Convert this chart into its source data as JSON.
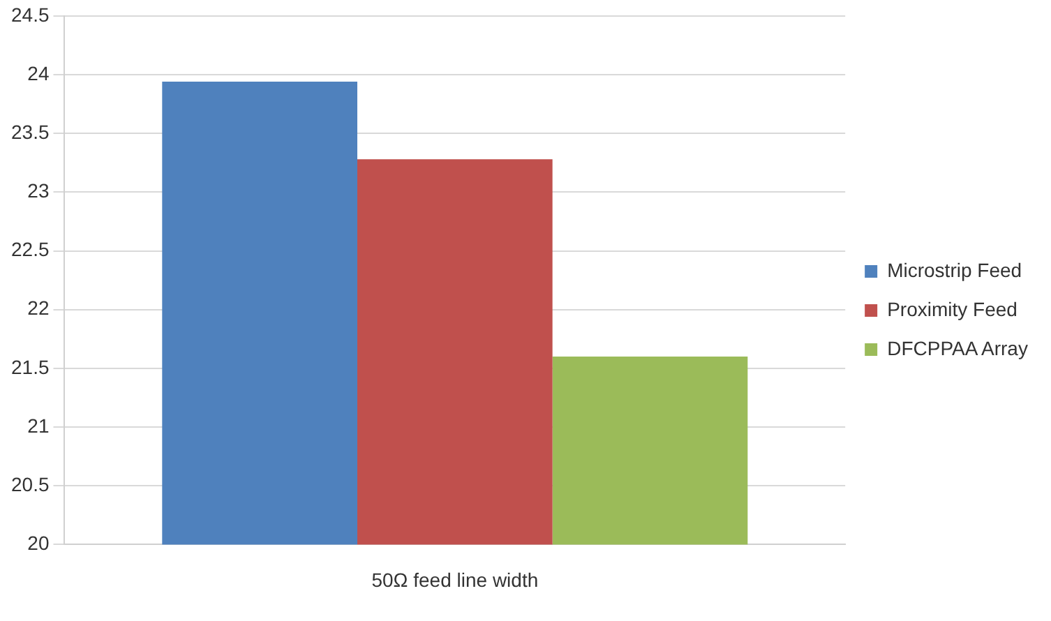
{
  "chart_data": {
    "type": "bar",
    "categories": [
      "50Ω feed line width"
    ],
    "series": [
      {
        "name": "Microstrip Feed",
        "color": "#4f81bd",
        "values": [
          23.94
        ]
      },
      {
        "name": "Proximity Feed",
        "color": "#c0504d",
        "values": [
          23.28
        ]
      },
      {
        "name": "DFCPPAA Array",
        "color": "#9bbb59",
        "values": [
          21.6
        ]
      }
    ],
    "ylim": [
      20,
      24.5
    ],
    "yticks": [
      20,
      20.5,
      21,
      21.5,
      22,
      22.5,
      23,
      23.5,
      24,
      24.5
    ],
    "grid": "y",
    "legend": "right"
  }
}
